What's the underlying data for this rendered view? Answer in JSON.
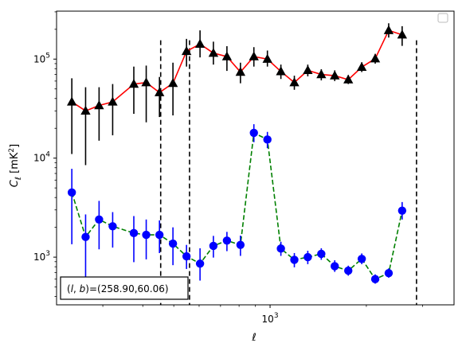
{
  "chart_data": {
    "type": "line",
    "xlabel": "ℓ",
    "ylabel": "C_ℓ  [mK²]",
    "xscale": "log",
    "yscale": "log",
    "xlim": [
      215,
      3760
    ],
    "ylim": [
      330,
      305000
    ],
    "xtick_labels": [
      {
        "value": 1000,
        "label": "10",
        "sup": "3"
      }
    ],
    "ytick_labels": [
      {
        "value": 1000,
        "label": "10",
        "sup": "3"
      },
      {
        "value": 10000,
        "label": "10",
        "sup": "4"
      },
      {
        "value": 100000,
        "label": "10",
        "sup": "5"
      }
    ],
    "legend": {
      "location": "top-right",
      "entries": []
    },
    "annotation": "(l, b)=(258.90,60.06)",
    "vlines": [
      {
        "x": 455,
        "style": "dashed"
      },
      {
        "x": 560,
        "style": "dashed"
      },
      {
        "x": 2870,
        "style": "dashed"
      }
    ],
    "series": [
      {
        "style": "red-line-black-triangles",
        "color": "#ff0000",
        "marker_color": "#000000",
        "points": [
          {
            "x": 240,
            "y": 37000,
            "lo": 11000,
            "hi": 64000
          },
          {
            "x": 265,
            "y": 30000,
            "lo": 8500,
            "hi": 52000
          },
          {
            "x": 292,
            "y": 34000,
            "lo": 15000,
            "hi": 52000
          },
          {
            "x": 322,
            "y": 37000,
            "lo": 17000,
            "hi": 56000
          },
          {
            "x": 375,
            "y": 56000,
            "lo": 28000,
            "hi": 84000
          },
          {
            "x": 410,
            "y": 58000,
            "lo": 23000,
            "hi": 86000
          },
          {
            "x": 451,
            "y": 46000,
            "lo": 26000,
            "hi": 66000
          },
          {
            "x": 497,
            "y": 57000,
            "lo": 27000,
            "hi": 92000
          },
          {
            "x": 548,
            "y": 120000,
            "lo": 84000,
            "hi": 160000
          },
          {
            "x": 604,
            "y": 142000,
            "lo": 104000,
            "hi": 195000
          },
          {
            "x": 665,
            "y": 115000,
            "lo": 88000,
            "hi": 150000
          },
          {
            "x": 733,
            "y": 106000,
            "lo": 76000,
            "hi": 135000
          },
          {
            "x": 808,
            "y": 74000,
            "lo": 57000,
            "hi": 92000
          },
          {
            "x": 890,
            "y": 106000,
            "lo": 84000,
            "hi": 132000
          },
          {
            "x": 981,
            "y": 100000,
            "lo": 84000,
            "hi": 122000
          },
          {
            "x": 1081,
            "y": 75000,
            "lo": 63000,
            "hi": 88000
          },
          {
            "x": 1191,
            "y": 58000,
            "lo": 49000,
            "hi": 68000
          },
          {
            "x": 1312,
            "y": 77000,
            "lo": 67000,
            "hi": 88000
          },
          {
            "x": 1446,
            "y": 70000,
            "lo": 61000,
            "hi": 79000
          },
          {
            "x": 1593,
            "y": 68000,
            "lo": 60000,
            "hi": 77000
          },
          {
            "x": 1756,
            "y": 62000,
            "lo": 56000,
            "hi": 69000
          },
          {
            "x": 1935,
            "y": 83000,
            "lo": 74000,
            "hi": 93000
          },
          {
            "x": 2132,
            "y": 101000,
            "lo": 90000,
            "hi": 113000
          },
          {
            "x": 2349,
            "y": 195000,
            "lo": 165000,
            "hi": 230000
          },
          {
            "x": 2588,
            "y": 176000,
            "lo": 136000,
            "hi": 215000
          }
        ]
      },
      {
        "style": "green-dashed-blue-circles",
        "color": "#008000",
        "marker_color": "#0000ff",
        "points": [
          {
            "x": 240,
            "y": 4500,
            "lo": 1350,
            "hi": 7800
          },
          {
            "x": 265,
            "y": 1600,
            "lo": 580,
            "hi": 2700
          },
          {
            "x": 292,
            "y": 2400,
            "lo": 1200,
            "hi": 3700
          },
          {
            "x": 322,
            "y": 2050,
            "lo": 1250,
            "hi": 2850
          },
          {
            "x": 375,
            "y": 1750,
            "lo": 890,
            "hi": 2600
          },
          {
            "x": 410,
            "y": 1680,
            "lo": 950,
            "hi": 2400
          },
          {
            "x": 451,
            "y": 1680,
            "lo": 1100,
            "hi": 2350
          },
          {
            "x": 497,
            "y": 1370,
            "lo": 830,
            "hi": 2000
          },
          {
            "x": 548,
            "y": 1020,
            "lo": 760,
            "hi": 1330
          },
          {
            "x": 604,
            "y": 860,
            "lo": 580,
            "hi": 1230
          },
          {
            "x": 665,
            "y": 1300,
            "lo": 990,
            "hi": 1640
          },
          {
            "x": 733,
            "y": 1470,
            "lo": 1150,
            "hi": 1800
          },
          {
            "x": 808,
            "y": 1330,
            "lo": 1030,
            "hi": 1650
          },
          {
            "x": 890,
            "y": 18000,
            "lo": 14500,
            "hi": 22000
          },
          {
            "x": 981,
            "y": 15400,
            "lo": 12600,
            "hi": 18400
          },
          {
            "x": 1081,
            "y": 1220,
            "lo": 1030,
            "hi": 1430
          },
          {
            "x": 1191,
            "y": 940,
            "lo": 790,
            "hi": 1100
          },
          {
            "x": 1312,
            "y": 1000,
            "lo": 850,
            "hi": 1160
          },
          {
            "x": 1446,
            "y": 1080,
            "lo": 940,
            "hi": 1230
          },
          {
            "x": 1593,
            "y": 810,
            "lo": 710,
            "hi": 930
          },
          {
            "x": 1756,
            "y": 730,
            "lo": 650,
            "hi": 820
          },
          {
            "x": 1935,
            "y": 960,
            "lo": 850,
            "hi": 1090
          },
          {
            "x": 2132,
            "y": 600,
            "lo": 540,
            "hi": 670
          },
          {
            "x": 2349,
            "y": 690,
            "lo": 620,
            "hi": 770
          },
          {
            "x": 2588,
            "y": 2950,
            "lo": 2400,
            "hi": 3600
          }
        ]
      }
    ]
  }
}
